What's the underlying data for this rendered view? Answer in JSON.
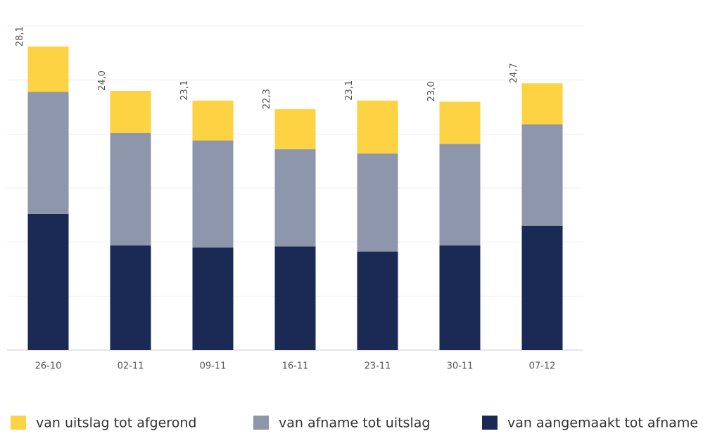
{
  "chart_data": {
    "type": "stacked_bar",
    "categories": [
      "26-10",
      "02-11",
      "09-11",
      "16-11",
      "23-11",
      "30-11",
      "07-12"
    ],
    "series": [
      {
        "name": "van aangemaakt tot afname",
        "color": "#1a2a55",
        "values": [
          12.6,
          9.7,
          9.5,
          9.6,
          9.1,
          9.7,
          11.5
        ]
      },
      {
        "name": "van afname tot uitslag",
        "color": "#8e96ac",
        "values": [
          11.3,
          10.4,
          9.9,
          9.0,
          9.1,
          9.4,
          9.4
        ]
      },
      {
        "name": "van uitslag tot afgerond",
        "color": "#fdd243",
        "values": [
          4.2,
          3.9,
          3.7,
          3.7,
          4.9,
          3.9,
          3.8
        ]
      }
    ],
    "totals": [
      28.1,
      24.0,
      23.1,
      22.3,
      23.1,
      23.0,
      24.7
    ],
    "total_labels": [
      "28,1",
      "24,0",
      "23,1",
      "22,3",
      "23,1",
      "23,0",
      "24,7"
    ],
    "ylim": [
      0,
      30
    ],
    "yticks": [
      0,
      5,
      10,
      15,
      20,
      25,
      30
    ],
    "grid": true
  }
}
